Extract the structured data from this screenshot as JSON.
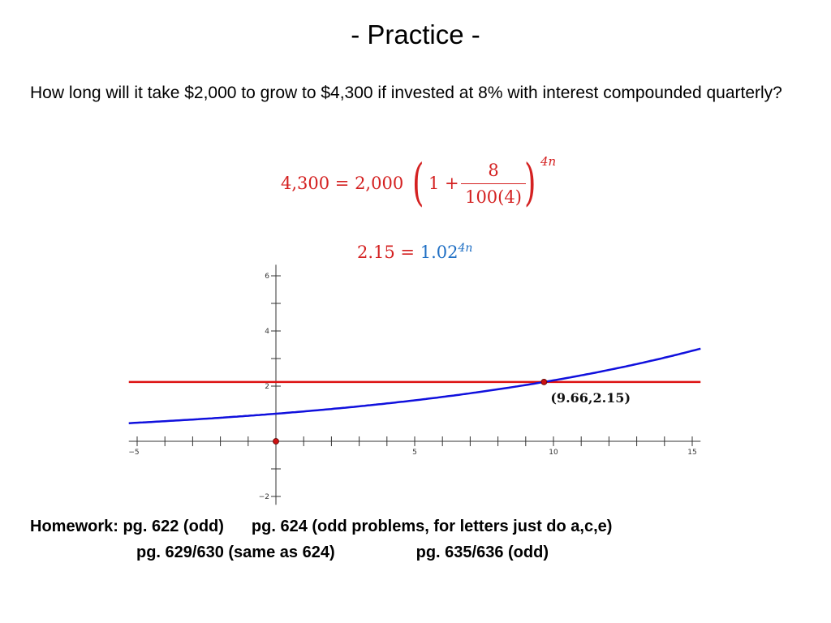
{
  "title": "- Practice -",
  "question": "How long will it take $2,000 to grow to $4,300 if invested at 8% with interest compounded quarterly?",
  "equation1": {
    "lhs": "4,300 = 2,000",
    "one_plus": "1 +",
    "numerator": "8",
    "denominator": "100(4)",
    "exponent": "4n"
  },
  "equation2": {
    "lhs": "2.15 =",
    "base": "1.02",
    "exponent": "4n"
  },
  "graph": {
    "tick_labels_x": [
      "−5",
      "5",
      "10",
      "15"
    ],
    "tick_labels_y": [
      "6",
      "4",
      "2",
      "−2"
    ],
    "intersection_label": "(9.66,2.15)",
    "colors": {
      "curve": "#1010dd",
      "line": "#dd1111",
      "point": "#cc1111"
    }
  },
  "chart_data": {
    "type": "line",
    "xlim": [
      -5,
      15
    ],
    "ylim": [
      -2,
      6
    ],
    "grid": false,
    "series": [
      {
        "function": "1.02^(4x)",
        "values_at": {
          "x": [
            -5,
            0,
            5,
            9.66,
            15
          ],
          "y": [
            0.67,
            1.0,
            1.49,
            2.15,
            3.28
          ]
        }
      },
      {
        "function": "2.15",
        "values_at": {
          "x": [
            -5,
            15
          ],
          "y": [
            2.15,
            2.15
          ]
        }
      }
    ],
    "points": [
      {
        "x": 0,
        "y": 0
      },
      {
        "x": 9.66,
        "y": 2.15,
        "label": "(9.66,2.15)"
      }
    ]
  },
  "homework": {
    "line1_a": "Homework: pg. 622 (odd)",
    "line1_b": "pg. 624 (odd problems, for letters just do a,c,e)",
    "line2_a": "pg. 629/630 (same as 624)",
    "line2_b": "pg. 635/636 (odd)"
  }
}
